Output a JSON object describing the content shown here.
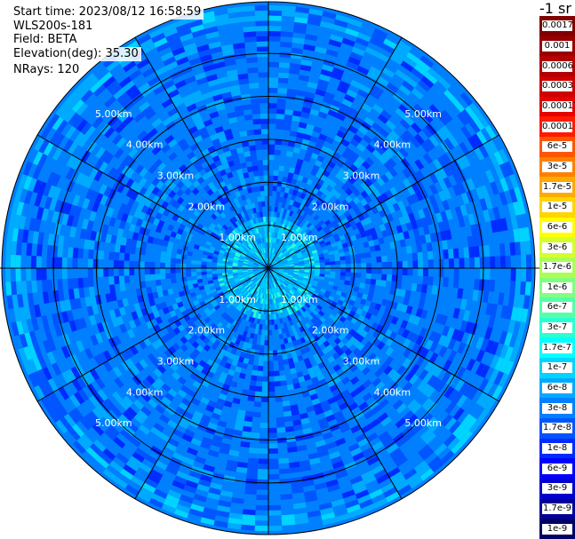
{
  "header": {
    "start_time": "Start time: 2023/08/12 16:58:59",
    "instrument": "WLS200s-181",
    "field": "Field: BETA",
    "elevation": "Elevation(deg): 35.30",
    "nrays": "NRays: 120"
  },
  "colorbar": {
    "units": "-1 sr",
    "labels": [
      "0.0017",
      "0.001",
      "0.0006",
      "0.0003",
      "0.00017",
      "0.0001",
      "6e-5",
      "3e-5",
      "1.7e-5",
      "1e-5",
      "6e-6",
      "3e-6",
      "1.7e-6",
      "1e-6",
      "6e-7",
      "3e-7",
      "1.7e-7",
      "1e-7",
      "6e-8",
      "3e-8",
      "1.7e-8",
      "1e-8",
      "6e-9",
      "3e-9",
      "1.7e-9",
      "1e-9"
    ],
    "colors": [
      "#800000",
      "#990000",
      "#b30000",
      "#cc0000",
      "#e60000",
      "#ff1a00",
      "#ff5500",
      "#ff8000",
      "#ffaa00",
      "#ffd500",
      "#ffff00",
      "#d4ff2b",
      "#aaff55",
      "#80ff80",
      "#55ffaa",
      "#2bffd4",
      "#00ffff",
      "#00d4ff",
      "#00aaff",
      "#0080ff",
      "#0055ff",
      "#002bff",
      "#0000ff",
      "#0000cc",
      "#000099",
      "#000066"
    ]
  },
  "chart_data": {
    "type": "heatmap",
    "projection": "polar PPI scan",
    "field": "BETA",
    "elevation_deg": 35.3,
    "nrays": 120,
    "range_rings_km": [
      1.0,
      2.0,
      3.0,
      4.0,
      5.0
    ],
    "ring_labels": [
      "1.00km",
      "2.00km",
      "3.00km",
      "4.00km",
      "5.00km"
    ],
    "max_range_km": 6.2,
    "azimuth_lines_deg": [
      0,
      30,
      60,
      90,
      120,
      150,
      180,
      210,
      240,
      270,
      300,
      330
    ],
    "value_range": [
      1e-09,
      0.0017
    ],
    "dominant_values": "mostly 1e-8 to 1e-7, brighter (1.7e-7 to 1e-6) near the center and in the outermost ring"
  }
}
